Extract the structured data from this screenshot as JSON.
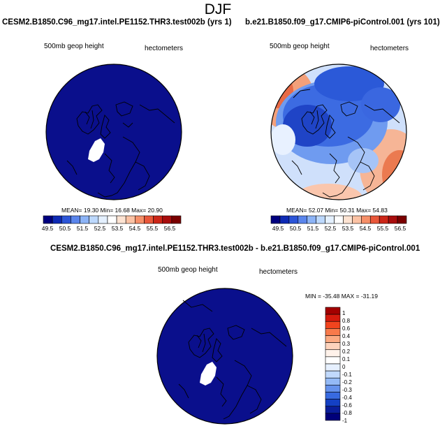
{
  "chart_data": [
    {
      "type": "heatmap",
      "projection": "north-polar-stereographic",
      "title": "CESM2.B1850.C96_mg17.intel.PE1152.THR3.test002b (yrs 1)",
      "variable": "500mb geop height",
      "units": "hectometers",
      "colorbar_levels": [
        49.5,
        50.5,
        51.5,
        52.5,
        53.5,
        54.5,
        55.5,
        56.5
      ],
      "colorbar_orientation": "horizontal",
      "stats": {
        "mean": 19.3,
        "min": 16.68,
        "max": 20.9
      },
      "stats_text": "MEAN=  19.30  Min=  16.68  Max=  20.90"
    },
    {
      "type": "heatmap",
      "projection": "north-polar-stereographic",
      "title": "b.e21.B1850.f09_g17.CMIP6-piControl.001 (yrs 101)",
      "variable": "500mb geop height",
      "units": "hectometers",
      "colorbar_levels": [
        49.5,
        50.5,
        51.5,
        52.5,
        53.5,
        54.5,
        55.5,
        56.5
      ],
      "colorbar_orientation": "horizontal",
      "stats": {
        "mean": 52.07,
        "min": 50.31,
        "max": 54.83
      },
      "stats_text": "MEAN=  52.07  Min=  50.31  Max=  54.83"
    },
    {
      "type": "heatmap",
      "projection": "north-polar-stereographic",
      "title": "CESM2.B1850.C96_mg17.intel.PE1152.THR3.test002b - b.e21.B1850.f09_g17.CMIP6-piControl.001",
      "variable": "500mb geop height",
      "units": "hectometers",
      "colorbar_levels": [
        1,
        0.8,
        0.6,
        0.4,
        0.3,
        0.2,
        0.1,
        0,
        -0.1,
        -0.2,
        -0.3,
        -0.4,
        -0.6,
        -0.8,
        -1
      ],
      "colorbar_orientation": "vertical",
      "stats": {
        "min": -35.48,
        "max": -31.19
      },
      "stats_text": "MIN = -35.48 MAX = -31.19"
    }
  ],
  "main_title": "DJF",
  "colors": {
    "map_fill_low": "#0a0f8c",
    "land_mask": "#ffffff",
    "coastline": "#000000",
    "hbar": [
      "#00007f",
      "#0e2ab4",
      "#2c55d8",
      "#5a85ec",
      "#8cb3f6",
      "#bcd8fd",
      "#e4f0ff",
      "#ffffff",
      "#fde3d2",
      "#fbc2a4",
      "#f69069",
      "#e9573a",
      "#cc2618",
      "#a80d0d",
      "#7a0000"
    ],
    "vbar": [
      "#a30000",
      "#d51a0d",
      "#f2441e",
      "#f87a4b",
      "#fbaa82",
      "#fdd3bc",
      "#fff2ea",
      "#ffffff",
      "#e6f0ff",
      "#c1d9fc",
      "#94baf6",
      "#6592ec",
      "#386ae0",
      "#1440c4",
      "#0a1d9a",
      "#00007a"
    ]
  }
}
